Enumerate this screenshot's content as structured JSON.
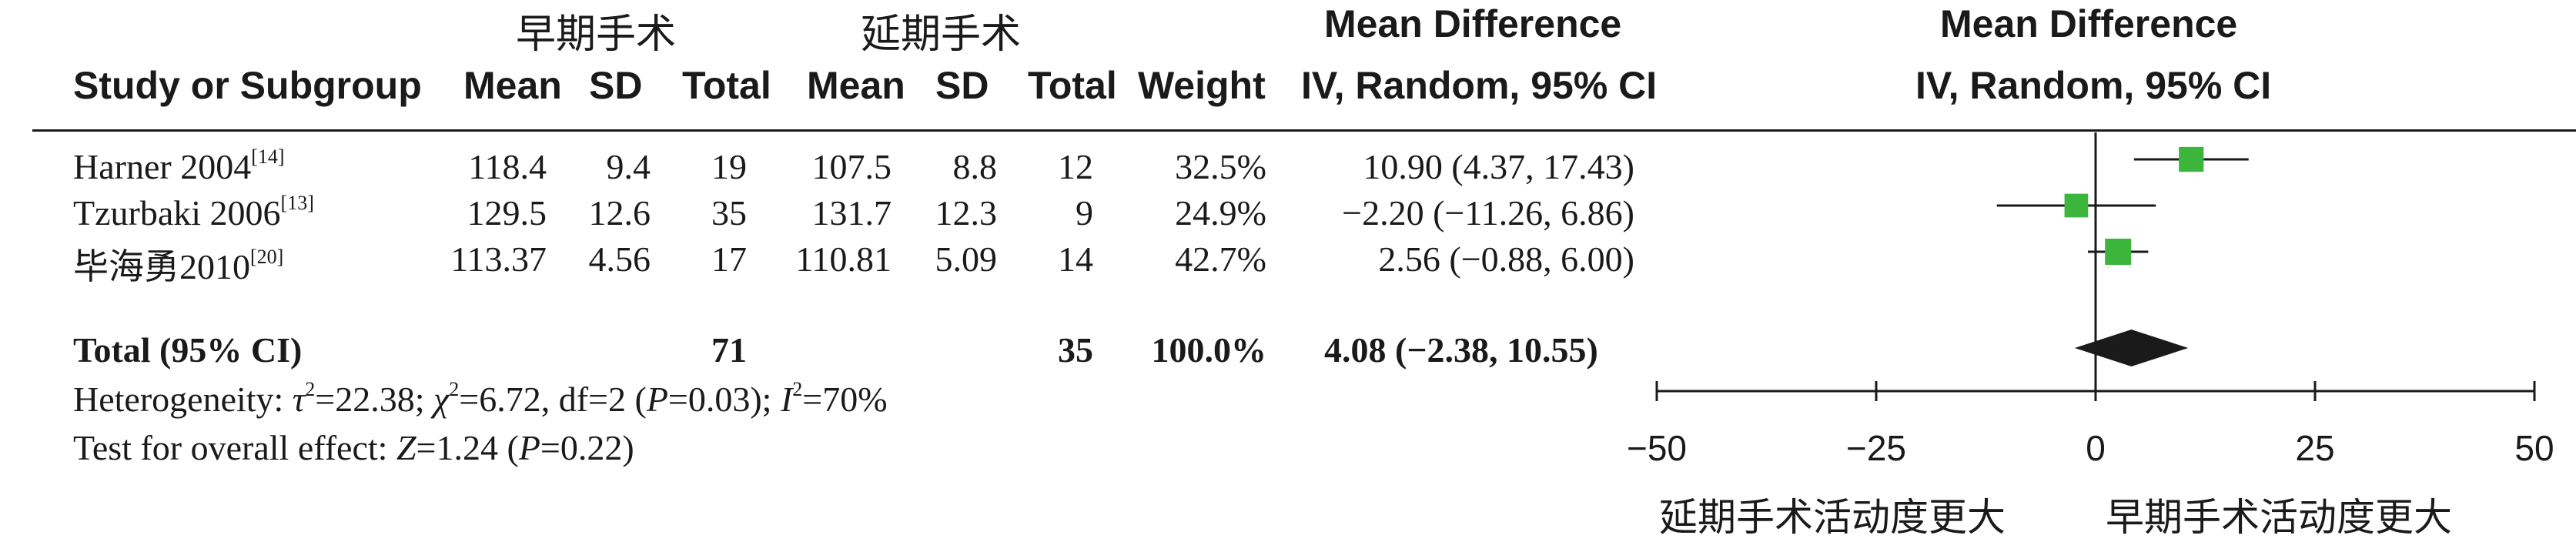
{
  "group_headers": {
    "early": "早期手术",
    "delayed": "延期手术"
  },
  "columns": {
    "study": "Study or Subgroup",
    "mean": "Mean",
    "sd": "SD",
    "total": "Total",
    "weight": "Weight",
    "md_title": "Mean Difference",
    "md_method": "IV, Random, 95% CI"
  },
  "studies": [
    {
      "name": "Harner 2004",
      "ref": "[14]",
      "e_mean": "118.4",
      "e_sd": "9.4",
      "e_total": "19",
      "c_mean": "107.5",
      "c_sd": "8.8",
      "c_total": "12",
      "weight": "32.5%",
      "ci_text": "10.90 (4.37, 17.43)"
    },
    {
      "name": "Tzurbaki 2006",
      "ref": "[13]",
      "e_mean": "129.5",
      "e_sd": "12.6",
      "e_total": "35",
      "c_mean": "131.7",
      "c_sd": "12.3",
      "c_total": "9",
      "weight": "24.9%",
      "ci_text": "−2.20 (−11.26, 6.86)"
    },
    {
      "name": "毕海勇2010",
      "ref": "[20]",
      "e_mean": "113.37",
      "e_sd": "4.56",
      "e_total": "17",
      "c_mean": "110.81",
      "c_sd": "5.09",
      "c_total": "14",
      "weight": "42.7%",
      "ci_text": "2.56 (−0.88, 6.00)"
    }
  ],
  "total": {
    "label": "Total (95% CI)",
    "e_total": "71",
    "c_total": "35",
    "weight": "100.0%",
    "ci_text": "4.08 (−2.38, 10.55)"
  },
  "heterogeneity": {
    "label": "Heterogeneity: ",
    "tau_sym": "τ",
    "tau_val": "=22.38; ",
    "chi_sym": "χ",
    "chi_val": "=6.72, df=2 (",
    "p_sym": "P",
    "p_val": "=0.03); ",
    "i_sym": "I",
    "i_val": "=70%",
    "sup2": "2"
  },
  "overall_effect": {
    "label": "Test for overall effect: ",
    "z_sym": "Z",
    "z_val": "=1.24 (",
    "p_sym": "P",
    "p_val": "=0.22)"
  },
  "favors": {
    "left": "延期手术活动度更大",
    "right": "早期手术活动度更大"
  },
  "chart_data": {
    "type": "forest",
    "title": "Mean Difference",
    "subtitle": "IV, Random, 95% CI",
    "xlim": [
      -50,
      50
    ],
    "xticks": [
      -50,
      -25,
      0,
      25,
      50
    ],
    "xtick_labels": [
      "−50",
      "−25",
      "0",
      "25",
      "50"
    ],
    "xlabel_left": "延期手术活动度更大",
    "xlabel_right": "早期手术活动度更大",
    "marker_color": "#3cb53c",
    "diamond_color": "#1a1a1a",
    "studies": [
      {
        "name": "Harner 2004",
        "md": 10.9,
        "lower": 4.37,
        "upper": 17.43,
        "weight": 32.5
      },
      {
        "name": "Tzurbaki 2006",
        "md": -2.2,
        "lower": -11.26,
        "upper": 6.86,
        "weight": 24.9
      },
      {
        "name": "毕海勇2010",
        "md": 2.56,
        "lower": -0.88,
        "upper": 6.0,
        "weight": 42.7
      }
    ],
    "pooled": {
      "md": 4.08,
      "lower": -2.38,
      "upper": 10.55
    }
  }
}
